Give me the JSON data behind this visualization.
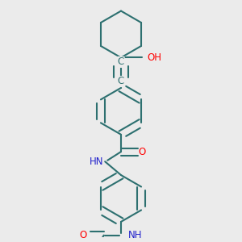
{
  "background_color": "#ebebeb",
  "bond_color": "#2d7070",
  "bond_width": 1.5,
  "atom_colors": {
    "O": "#ff0000",
    "N": "#2222cc",
    "C": "#2d7070"
  },
  "font_size": 8.5,
  "fig_width": 3.0,
  "fig_height": 3.0,
  "dpi": 100,
  "xlim": [
    0.18,
    0.82
  ],
  "ylim": [
    0.02,
    0.98
  ]
}
